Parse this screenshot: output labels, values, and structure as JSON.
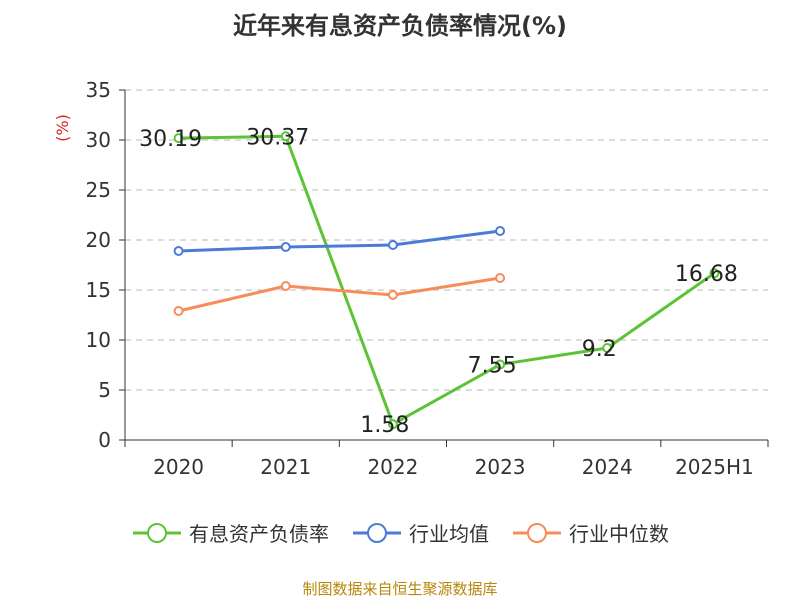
{
  "chart_data": {
    "type": "line",
    "title": "近年来有息资产负债率情况(%)",
    "ylabel": "(%)",
    "categories": [
      "2020",
      "2021",
      "2022",
      "2023",
      "2024",
      "2025H1"
    ],
    "y_ticks": [
      "0",
      "5",
      "10",
      "15",
      "20",
      "25",
      "30",
      "35"
    ],
    "ylim": [
      0,
      35
    ],
    "grid": "horizontal-dashed",
    "legend_position": "bottom",
    "series": [
      {
        "name": "有息资产负债率",
        "color": "#5cc337",
        "values": [
          30.19,
          30.37,
          1.58,
          7.55,
          9.2,
          16.68
        ],
        "labels": [
          "30.19",
          "30.37",
          "1.58",
          "7.55",
          "9.2",
          "16.68"
        ]
      },
      {
        "name": "行业均值",
        "color": "#4a7bd8",
        "values": [
          18.9,
          19.3,
          19.5,
          20.9,
          null,
          null
        ]
      },
      {
        "name": "行业中位数",
        "color": "#f78c5a",
        "values": [
          12.9,
          15.4,
          14.5,
          16.2,
          null,
          null
        ]
      }
    ]
  },
  "source_note": "制图数据来自恒生聚源数据库"
}
